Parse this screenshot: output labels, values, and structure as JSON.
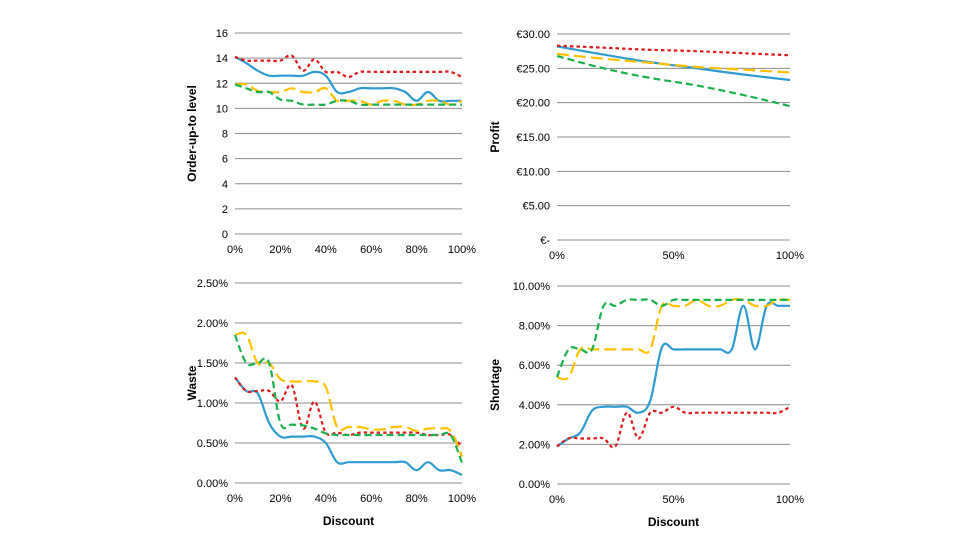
{
  "colors": {
    "blue": "#2e9bd0",
    "red": "#e0191b",
    "yellow": "#ffc000",
    "green": "#19b14c",
    "grid": "#8c8c8c"
  },
  "chart_data": [
    {
      "id": "order",
      "type": "line",
      "title": "",
      "xlabel": "",
      "ylabel": "Order-up-to level",
      "xlim": [
        0,
        100
      ],
      "ylim": [
        0,
        16
      ],
      "xticks": [
        0,
        20,
        40,
        60,
        80,
        100
      ],
      "xtick_labels": [
        "0%",
        "20%",
        "40%",
        "60%",
        "80%",
        "100%"
      ],
      "yticks": [
        0,
        2,
        4,
        6,
        8,
        10,
        12,
        14,
        16
      ],
      "ytick_labels": [
        "0",
        "2",
        "4",
        "6",
        "8",
        "10",
        "12",
        "14",
        "16"
      ],
      "grid": true,
      "series": [
        {
          "color": "blue",
          "dash": "solid",
          "x": [
            0,
            5,
            10,
            15,
            20,
            25,
            30,
            35,
            40,
            45,
            50,
            55,
            60,
            65,
            70,
            75,
            80,
            85,
            90,
            95,
            100
          ],
          "y": [
            14.1,
            13.6,
            13.0,
            12.6,
            12.6,
            12.6,
            12.6,
            12.9,
            12.6,
            11.3,
            11.3,
            11.6,
            11.6,
            11.6,
            11.6,
            11.3,
            10.6,
            11.3,
            10.6,
            10.6,
            10.6
          ]
        },
        {
          "color": "red",
          "dash": "dot",
          "x": [
            0,
            5,
            10,
            15,
            20,
            25,
            30,
            35,
            40,
            45,
            50,
            55,
            60,
            65,
            70,
            75,
            80,
            85,
            90,
            95,
            100
          ],
          "y": [
            14.1,
            13.8,
            13.8,
            13.8,
            13.8,
            14.2,
            13.0,
            13.9,
            12.9,
            12.9,
            12.5,
            12.9,
            12.9,
            12.9,
            12.9,
            12.9,
            12.9,
            12.9,
            12.9,
            12.9,
            12.5
          ]
        },
        {
          "color": "yellow",
          "dash": "longdash",
          "x": [
            0,
            5,
            10,
            15,
            20,
            25,
            30,
            35,
            40,
            45,
            50,
            55,
            60,
            65,
            70,
            75,
            80,
            85,
            90,
            95,
            100
          ],
          "y": [
            11.9,
            11.9,
            11.4,
            11.3,
            11.3,
            11.6,
            11.3,
            11.3,
            11.6,
            10.6,
            10.6,
            10.6,
            10.3,
            10.6,
            10.6,
            10.3,
            10.3,
            10.6,
            10.6,
            10.3,
            10.6
          ]
        },
        {
          "color": "green",
          "dash": "dash",
          "x": [
            0,
            5,
            10,
            15,
            20,
            25,
            30,
            35,
            40,
            45,
            50,
            55,
            60,
            65,
            70,
            75,
            80,
            85,
            90,
            95,
            100
          ],
          "y": [
            11.9,
            11.6,
            11.3,
            11.3,
            10.7,
            10.6,
            10.3,
            10.3,
            10.3,
            10.6,
            10.6,
            10.3,
            10.3,
            10.3,
            10.3,
            10.3,
            10.3,
            10.3,
            10.3,
            10.3,
            10.3
          ]
        }
      ]
    },
    {
      "id": "profit",
      "type": "line",
      "title": "",
      "xlabel": "",
      "ylabel": "Profit",
      "xlim": [
        0,
        100
      ],
      "ylim": [
        0,
        30
      ],
      "xticks": [
        0,
        50,
        100
      ],
      "xtick_labels": [
        "0%",
        "50%",
        "100%"
      ],
      "yticks": [
        0,
        5,
        10,
        15,
        20,
        25,
        30
      ],
      "ytick_labels": [
        "€-",
        "€5.00",
        "€10.00",
        "€15.00",
        "€20.00",
        "€25.00",
        "€30.00"
      ],
      "grid": true,
      "series": [
        {
          "color": "blue",
          "dash": "solid",
          "x": [
            0,
            20,
            40,
            60,
            80,
            100
          ],
          "y": [
            28.2,
            27.0,
            25.9,
            25.0,
            24.1,
            23.3
          ]
        },
        {
          "color": "red",
          "dash": "dot",
          "x": [
            0,
            20,
            40,
            60,
            80,
            100
          ],
          "y": [
            28.3,
            28.0,
            27.7,
            27.5,
            27.2,
            26.9
          ]
        },
        {
          "color": "yellow",
          "dash": "longdash",
          "x": [
            0,
            20,
            40,
            60,
            80,
            100
          ],
          "y": [
            27.1,
            26.4,
            25.8,
            25.2,
            24.8,
            24.4
          ]
        },
        {
          "color": "green",
          "dash": "dash",
          "x": [
            0,
            20,
            40,
            60,
            80,
            100
          ],
          "y": [
            26.8,
            25.0,
            23.6,
            22.5,
            21.1,
            19.5
          ]
        }
      ]
    },
    {
      "id": "waste",
      "type": "line",
      "title": "",
      "xlabel": "Discount",
      "ylabel": "Waste",
      "xlim": [
        0,
        100
      ],
      "ylim": [
        0,
        2.5
      ],
      "xticks": [
        0,
        20,
        40,
        60,
        80,
        100
      ],
      "xtick_labels": [
        "0%",
        "20%",
        "40%",
        "60%",
        "80%",
        "100%"
      ],
      "yticks": [
        0,
        0.5,
        1.0,
        1.5,
        2.0,
        2.5
      ],
      "ytick_labels": [
        "0.00%",
        "0.50%",
        "1.00%",
        "1.50%",
        "2.00%",
        "2.50%"
      ],
      "grid": true,
      "series": [
        {
          "color": "blue",
          "dash": "solid",
          "x": [
            0,
            5,
            10,
            15,
            20,
            25,
            30,
            35,
            40,
            45,
            50,
            55,
            60,
            65,
            70,
            75,
            80,
            85,
            90,
            95,
            100
          ],
          "y": [
            1.32,
            1.15,
            1.12,
            0.75,
            0.58,
            0.58,
            0.58,
            0.58,
            0.5,
            0.26,
            0.26,
            0.26,
            0.26,
            0.26,
            0.26,
            0.26,
            0.16,
            0.26,
            0.16,
            0.16,
            0.1
          ]
        },
        {
          "color": "red",
          "dash": "dot",
          "x": [
            0,
            5,
            10,
            15,
            20,
            25,
            30,
            35,
            40,
            45,
            50,
            55,
            60,
            65,
            70,
            75,
            80,
            85,
            90,
            95,
            100
          ],
          "y": [
            1.32,
            1.15,
            1.15,
            1.15,
            1.02,
            1.22,
            0.68,
            1.02,
            0.63,
            0.63,
            0.6,
            0.63,
            0.63,
            0.63,
            0.63,
            0.63,
            0.63,
            0.6,
            0.6,
            0.6,
            0.45
          ]
        },
        {
          "color": "yellow",
          "dash": "longdash",
          "x": [
            0,
            5,
            10,
            15,
            20,
            25,
            30,
            35,
            40,
            45,
            50,
            55,
            60,
            65,
            70,
            75,
            80,
            85,
            90,
            95,
            100
          ],
          "y": [
            1.85,
            1.85,
            1.5,
            1.5,
            1.3,
            1.27,
            1.27,
            1.27,
            1.2,
            0.7,
            0.7,
            0.7,
            0.67,
            0.67,
            0.7,
            0.7,
            0.65,
            0.68,
            0.68,
            0.65,
            0.33
          ]
        },
        {
          "color": "green",
          "dash": "dash",
          "x": [
            0,
            5,
            10,
            15,
            20,
            25,
            30,
            35,
            40,
            45,
            50,
            55,
            60,
            65,
            70,
            75,
            80,
            85,
            90,
            95,
            100
          ],
          "y": [
            1.85,
            1.5,
            1.5,
            1.5,
            0.75,
            0.73,
            0.72,
            0.68,
            0.62,
            0.6,
            0.6,
            0.6,
            0.6,
            0.6,
            0.6,
            0.6,
            0.6,
            0.6,
            0.6,
            0.6,
            0.25
          ]
        }
      ]
    },
    {
      "id": "shortage",
      "type": "line",
      "title": "",
      "xlabel": "Discount",
      "ylabel": "Shortage",
      "xlim": [
        0,
        100
      ],
      "ylim": [
        0,
        10
      ],
      "xticks": [
        0,
        50,
        100
      ],
      "xtick_labels": [
        "0%",
        "50%",
        "100%"
      ],
      "yticks": [
        0,
        2,
        4,
        6,
        8,
        10
      ],
      "ytick_labels": [
        "0.00%",
        "2.00%",
        "4.00%",
        "6.00%",
        "8.00%",
        "10.00%"
      ],
      "grid": true,
      "series": [
        {
          "color": "blue",
          "dash": "solid",
          "x": [
            0,
            5,
            10,
            15,
            20,
            25,
            30,
            35,
            40,
            45,
            50,
            55,
            60,
            65,
            70,
            75,
            80,
            85,
            90,
            95,
            100
          ],
          "y": [
            1.9,
            2.3,
            2.6,
            3.7,
            3.9,
            3.9,
            3.9,
            3.6,
            4.2,
            6.9,
            6.8,
            6.8,
            6.8,
            6.8,
            6.8,
            6.8,
            9.0,
            6.8,
            9.0,
            9.0,
            9.0
          ]
        },
        {
          "color": "red",
          "dash": "dot",
          "x": [
            0,
            5,
            10,
            15,
            20,
            25,
            30,
            35,
            40,
            45,
            50,
            55,
            60,
            65,
            70,
            75,
            80,
            85,
            90,
            95,
            100
          ],
          "y": [
            1.9,
            2.3,
            2.3,
            2.3,
            2.3,
            1.9,
            3.6,
            2.3,
            3.6,
            3.6,
            3.9,
            3.6,
            3.6,
            3.6,
            3.6,
            3.6,
            3.6,
            3.6,
            3.6,
            3.6,
            3.9
          ]
        },
        {
          "color": "yellow",
          "dash": "longdash",
          "x": [
            0,
            5,
            10,
            15,
            20,
            25,
            30,
            35,
            40,
            45,
            50,
            55,
            60,
            65,
            70,
            75,
            80,
            85,
            90,
            95,
            100
          ],
          "y": [
            5.4,
            5.4,
            6.8,
            6.8,
            6.8,
            6.8,
            6.8,
            6.8,
            6.8,
            9.0,
            9.0,
            9.0,
            9.3,
            9.0,
            9.0,
            9.3,
            9.3,
            9.0,
            9.0,
            9.3,
            9.3
          ]
        },
        {
          "color": "green",
          "dash": "dash",
          "x": [
            0,
            5,
            10,
            15,
            20,
            25,
            30,
            35,
            40,
            45,
            50,
            55,
            60,
            65,
            70,
            75,
            80,
            85,
            90,
            95,
            100
          ],
          "y": [
            5.4,
            6.8,
            6.8,
            6.8,
            9.0,
            9.0,
            9.3,
            9.3,
            9.3,
            9.0,
            9.3,
            9.3,
            9.3,
            9.3,
            9.3,
            9.3,
            9.3,
            9.3,
            9.3,
            9.3,
            9.3
          ]
        }
      ]
    }
  ]
}
